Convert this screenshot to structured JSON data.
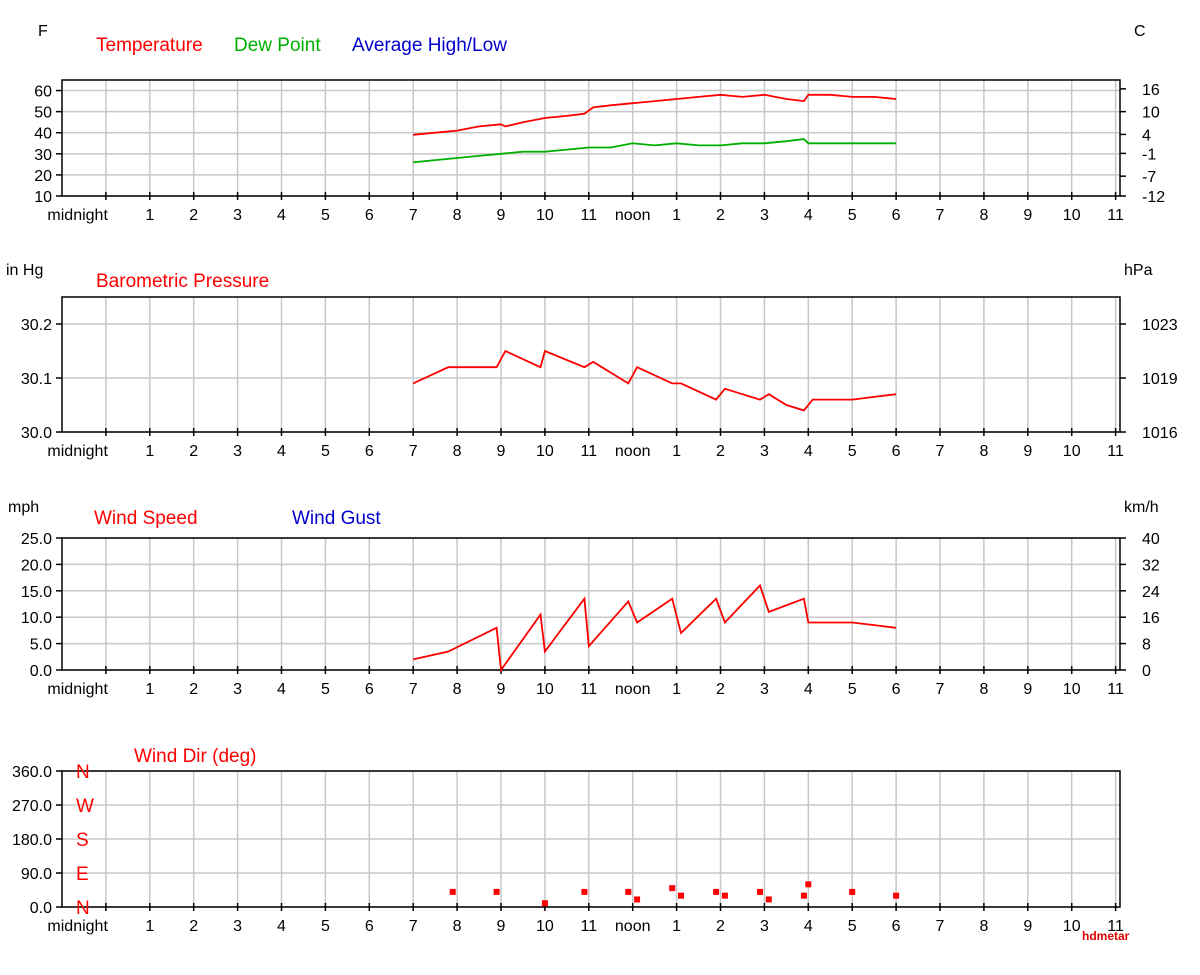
{
  "colors": {
    "red": "#ff0000",
    "green": "#00b000",
    "blue": "#0000cc",
    "grid": "#c8c8c8",
    "frame": "#000000"
  },
  "credit": "hdmetar",
  "x_labels": [
    "midnight",
    "1",
    "2",
    "3",
    "4",
    "5",
    "6",
    "7",
    "8",
    "9",
    "10",
    "11",
    "noon",
    "1",
    "2",
    "3",
    "4",
    "5",
    "6",
    "7",
    "8",
    "9",
    "10",
    "11"
  ],
  "chart_data": [
    {
      "type": "line",
      "left_unit": "F",
      "right_unit": "C",
      "legend": [
        {
          "name": "Temperature",
          "color": "#ff0000"
        },
        {
          "name": "Dew Point",
          "color": "#00b000"
        },
        {
          "name": "Average High/Low",
          "color": "#0000cc"
        }
      ],
      "ylim": [
        10,
        65
      ],
      "left_ticks": [
        10,
        20,
        30,
        40,
        50,
        60
      ],
      "right_ticks": [
        {
          "label": "-12",
          "at": 10
        },
        {
          "label": "-7",
          "at": 19.4
        },
        {
          "label": "-1",
          "at": 30.2
        },
        {
          "label": "4",
          "at": 39.2
        },
        {
          "label": "10",
          "at": 50
        },
        {
          "label": "16",
          "at": 60.8
        }
      ],
      "series": [
        {
          "name": "Temperature",
          "color": "#ff0000",
          "x": [
            7,
            7.5,
            8,
            8.5,
            9,
            9.1,
            9.5,
            10,
            10.5,
            10.9,
            11.1,
            11.5,
            12,
            12.5,
            13,
            13.5,
            14,
            14.5,
            15,
            15.5,
            15.9,
            16,
            16.5,
            17,
            17.5,
            18
          ],
          "y": [
            39,
            40,
            41,
            43,
            44,
            43,
            45,
            47,
            48,
            49,
            52,
            53,
            54,
            55,
            56,
            57,
            58,
            57,
            58,
            56,
            55,
            58,
            58,
            57,
            57,
            56
          ]
        },
        {
          "name": "Dew Point",
          "color": "#00b000",
          "x": [
            7,
            7.5,
            8,
            8.5,
            9,
            9.5,
            10,
            10.5,
            11,
            11.5,
            12,
            12.5,
            13,
            13.5,
            14,
            14.5,
            15,
            15.5,
            15.9,
            16,
            16.5,
            17,
            17.5,
            18
          ],
          "y": [
            26,
            27,
            28,
            29,
            30,
            31,
            31,
            32,
            33,
            33,
            35,
            34,
            35,
            34,
            34,
            35,
            35,
            36,
            37,
            35,
            35,
            35,
            35,
            35
          ]
        }
      ]
    },
    {
      "type": "line",
      "left_unit": "in Hg",
      "right_unit": "hPa",
      "legend": [
        {
          "name": "Barometric Pressure",
          "color": "#ff0000"
        }
      ],
      "ylim": [
        30.0,
        30.25
      ],
      "left_ticks": [
        30.0,
        30.1,
        30.2
      ],
      "left_tick_format": "1",
      "right_ticks": [
        {
          "label": "1016",
          "at": 30.0
        },
        {
          "label": "1019",
          "at": 30.1
        },
        {
          "label": "1023",
          "at": 30.2
        }
      ],
      "series": [
        {
          "name": "Barometric Pressure",
          "color": "#ff0000",
          "x": [
            7,
            7.8,
            8.9,
            9.1,
            9.9,
            10.0,
            10.9,
            11.1,
            11.9,
            12.1,
            12.9,
            13.1,
            13.9,
            14.1,
            14.5,
            14.9,
            15.1,
            15.5,
            15.9,
            16.1,
            16.5,
            17,
            17.5,
            18
          ],
          "y": [
            30.09,
            30.12,
            30.12,
            30.15,
            30.12,
            30.15,
            30.12,
            30.13,
            30.09,
            30.12,
            30.09,
            30.09,
            30.06,
            30.08,
            30.07,
            30.06,
            30.07,
            30.05,
            30.04,
            30.06,
            30.06,
            30.06,
            30.065,
            30.07
          ]
        }
      ]
    },
    {
      "type": "line",
      "left_unit": "mph",
      "right_unit": "km/h",
      "legend": [
        {
          "name": "Wind Speed",
          "color": "#ff0000"
        },
        {
          "name": "Wind Gust",
          "color": "#0000cc"
        }
      ],
      "ylim": [
        0,
        25
      ],
      "left_ticks": [
        0,
        5,
        10,
        15,
        20,
        25
      ],
      "left_tick_format": "1",
      "right_ticks": [
        {
          "label": "0",
          "at": 0
        },
        {
          "label": "8",
          "at": 5
        },
        {
          "label": "16",
          "at": 10
        },
        {
          "label": "24",
          "at": 15
        },
        {
          "label": "32",
          "at": 20
        },
        {
          "label": "40",
          "at": 25
        }
      ],
      "series": [
        {
          "name": "Wind Speed",
          "color": "#ff0000",
          "x": [
            7,
            7.8,
            8.9,
            9.0,
            9.9,
            10.0,
            10.9,
            11.0,
            11.9,
            12.1,
            12.9,
            13.1,
            13.9,
            14.1,
            14.9,
            15.1,
            15.9,
            16.0,
            17,
            17.5,
            18
          ],
          "y": [
            2,
            3.5,
            8,
            0,
            10.5,
            3.5,
            13.5,
            4.5,
            13,
            9,
            13.5,
            7,
            13.5,
            9,
            16,
            11,
            13.5,
            9,
            9,
            8.5,
            8
          ]
        }
      ]
    },
    {
      "type": "scatter",
      "left_unit": "",
      "right_unit": "",
      "legend": [
        {
          "name": "Wind Dir (deg)",
          "color": "#ff0000"
        }
      ],
      "ylim": [
        0,
        360
      ],
      "left_ticks": [
        0,
        90,
        180,
        270,
        360
      ],
      "left_tick_format": "1",
      "compass": [
        {
          "label": "N",
          "at": 0
        },
        {
          "label": "E",
          "at": 90
        },
        {
          "label": "S",
          "at": 180
        },
        {
          "label": "W",
          "at": 270
        },
        {
          "label": "N",
          "at": 360
        }
      ],
      "series": [
        {
          "name": "Wind Dir (deg)",
          "color": "#ff0000",
          "x": [
            7.9,
            8.9,
            10.0,
            10.9,
            11.9,
            12.1,
            12.9,
            13.1,
            13.9,
            14.1,
            14.9,
            15.1,
            15.9,
            16.0,
            17.0,
            18.0
          ],
          "y": [
            40,
            40,
            10,
            40,
            40,
            20,
            50,
            30,
            40,
            30,
            40,
            20,
            30,
            60,
            40,
            30
          ]
        }
      ]
    }
  ]
}
